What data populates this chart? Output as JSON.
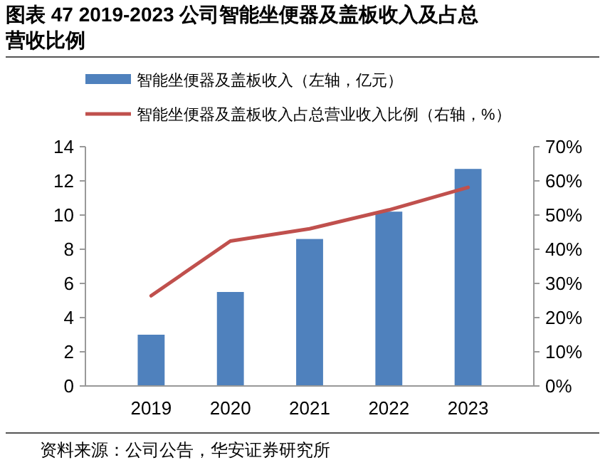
{
  "chart_data": {
    "type": "bar",
    "title": "图表 47 2019-2023 公司智能坐便器及盖板收入及占总营收比例",
    "categories": [
      "2019",
      "2020",
      "2021",
      "2022",
      "2023"
    ],
    "series": [
      {
        "name": "智能坐便器及盖板收入（左轴，亿元）",
        "color": "#4f81bd",
        "values": [
          3.0,
          5.5,
          8.6,
          10.2,
          12.7
        ]
      },
      {
        "name": "智能坐便器及盖板收入占总营业收入比例（右轴，%）",
        "type": "line",
        "axis": "y2",
        "color": "#c0504d",
        "values": [
          26.4,
          42.4,
          46.0,
          51.5,
          58.1
        ]
      }
    ],
    "ylim": [
      0,
      14
    ],
    "yticks": [
      0,
      2,
      4,
      6,
      8,
      10,
      12,
      14
    ],
    "y2lim": [
      0,
      70
    ],
    "y2ticks": [
      {
        "value": 0,
        "label": "0%"
      },
      {
        "value": 10,
        "label": "10%"
      },
      {
        "value": 20,
        "label": "20%"
      },
      {
        "value": 30,
        "label": "30%"
      },
      {
        "value": 40,
        "label": "40%"
      },
      {
        "value": 50,
        "label": "50%"
      },
      {
        "value": 60,
        "label": "60%"
      },
      {
        "value": 70,
        "label": "70%"
      }
    ],
    "legend": "top",
    "grid": false,
    "annotations": [
      "资料来源：公司公告，华安证券研究所"
    ]
  }
}
